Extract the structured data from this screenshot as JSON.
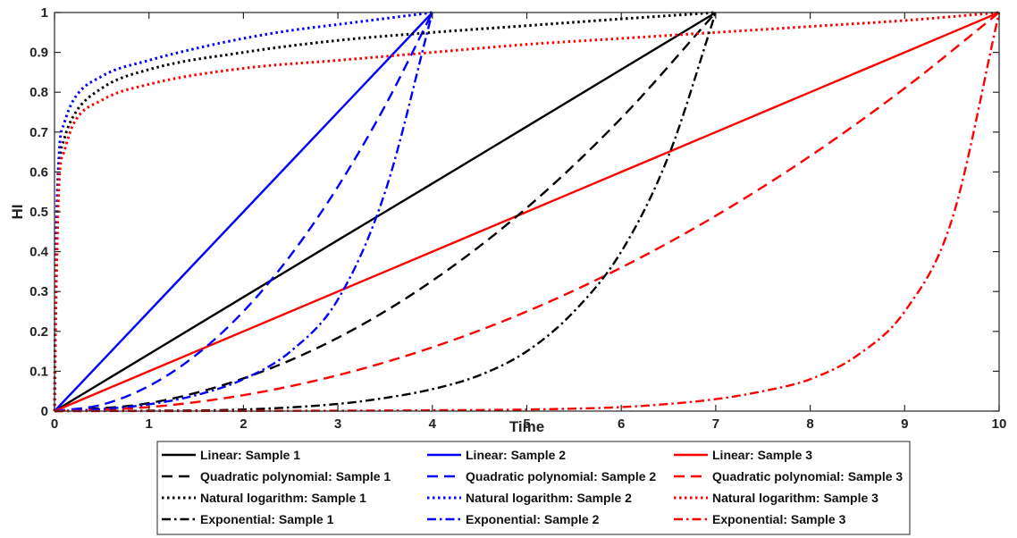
{
  "chart_data": {
    "type": "line",
    "xlabel": "Time",
    "ylabel": "HI",
    "xlim": [
      0,
      10
    ],
    "ylim": [
      0,
      1
    ],
    "xticks": [
      0,
      1,
      2,
      3,
      4,
      5,
      6,
      7,
      8,
      9,
      10
    ],
    "yticks": [
      0,
      0.1,
      0.2,
      0.3,
      0.4,
      0.5,
      0.6,
      0.7,
      0.8,
      0.9,
      1
    ],
    "grid": false,
    "legend_position": "bottom",
    "series": [
      {
        "name": "Linear: Sample 1",
        "color": "#000000",
        "style": "solid",
        "x": [
          0,
          1,
          2,
          3,
          4,
          5,
          6,
          7
        ],
        "y": [
          0,
          0.143,
          0.286,
          0.429,
          0.571,
          0.714,
          0.857,
          1
        ]
      },
      {
        "name": "Linear: Sample 2",
        "color": "#0000ff",
        "style": "solid",
        "x": [
          0,
          1,
          2,
          3,
          4
        ],
        "y": [
          0,
          0.25,
          0.5,
          0.75,
          1
        ]
      },
      {
        "name": "Linear: Sample 3",
        "color": "#ff0000",
        "style": "solid",
        "x": [
          0,
          1,
          2,
          3,
          4,
          5,
          6,
          7,
          8,
          9,
          10
        ],
        "y": [
          0,
          0.1,
          0.2,
          0.3,
          0.4,
          0.5,
          0.6,
          0.7,
          0.8,
          0.9,
          1
        ]
      },
      {
        "name": "Quadratic polynomial: Sample 1",
        "color": "#000000",
        "style": "dashed",
        "x": [
          0,
          1,
          2,
          3,
          4,
          5,
          6,
          7
        ],
        "y": [
          0,
          0.02,
          0.082,
          0.184,
          0.327,
          0.51,
          0.735,
          1
        ]
      },
      {
        "name": "Quadratic polynomial: Sample 2",
        "color": "#0000ff",
        "style": "dashed",
        "x": [
          0,
          0.5,
          1,
          1.5,
          2,
          2.5,
          3,
          3.5,
          4
        ],
        "y": [
          0,
          0.016,
          0.063,
          0.141,
          0.25,
          0.391,
          0.563,
          0.766,
          1
        ]
      },
      {
        "name": "Quadratic polynomial: Sample 3",
        "color": "#ff0000",
        "style": "dashed",
        "x": [
          0,
          1,
          2,
          3,
          4,
          5,
          6,
          7,
          8,
          9,
          10
        ],
        "y": [
          0,
          0.01,
          0.04,
          0.09,
          0.16,
          0.25,
          0.36,
          0.49,
          0.64,
          0.81,
          1
        ]
      },
      {
        "name": "Natural logarithm: Sample 1",
        "color": "#000000",
        "style": "dotted",
        "x": [
          0,
          0.01,
          0.05,
          0.1,
          0.2,
          0.5,
          1,
          2,
          3,
          4,
          5,
          6,
          7
        ],
        "y": [
          0,
          0.2,
          0.6,
          0.68,
          0.74,
          0.81,
          0.857,
          0.9,
          0.93,
          0.95,
          0.967,
          0.984,
          1
        ]
      },
      {
        "name": "Natural logarithm: Sample 2",
        "color": "#0000ff",
        "style": "dotted",
        "x": [
          0,
          0.01,
          0.05,
          0.1,
          0.2,
          0.5,
          1,
          1.5,
          2,
          2.5,
          3,
          3.5,
          4
        ],
        "y": [
          0,
          0.3,
          0.65,
          0.72,
          0.78,
          0.84,
          0.88,
          0.91,
          0.935,
          0.955,
          0.97,
          0.985,
          1
        ]
      },
      {
        "name": "Natural logarithm: Sample 3",
        "color": "#ff0000",
        "style": "dotted",
        "x": [
          0,
          0.01,
          0.05,
          0.1,
          0.2,
          0.5,
          1,
          2,
          3,
          4,
          5,
          6,
          7,
          8,
          9,
          10
        ],
        "y": [
          0,
          0.2,
          0.58,
          0.65,
          0.72,
          0.78,
          0.82,
          0.86,
          0.88,
          0.9,
          0.92,
          0.935,
          0.95,
          0.965,
          0.98,
          1
        ]
      },
      {
        "name": "Exponential: Sample 1",
        "color": "#000000",
        "style": "dashdot",
        "x": [
          0,
          1,
          2,
          3,
          3.5,
          4,
          4.5,
          5,
          5.5,
          6,
          6.5,
          7
        ],
        "y": [
          0,
          0.001,
          0.004,
          0.018,
          0.033,
          0.055,
          0.09,
          0.15,
          0.25,
          0.4,
          0.64,
          1
        ]
      },
      {
        "name": "Exponential: Sample 2",
        "color": "#0000ff",
        "style": "dashdot",
        "x": [
          0,
          0.5,
          1,
          1.5,
          2,
          2.5,
          3,
          3.5,
          4
        ],
        "y": [
          0,
          0.005,
          0.017,
          0.04,
          0.08,
          0.15,
          0.28,
          0.55,
          1
        ]
      },
      {
        "name": "Exponential: Sample 3",
        "color": "#ff0000",
        "style": "dashdot",
        "x": [
          0,
          2,
          4,
          5,
          6,
          6.5,
          7,
          7.5,
          8,
          8.5,
          9,
          9.5,
          10
        ],
        "y": [
          0,
          0.0005,
          0.002,
          0.004,
          0.01,
          0.018,
          0.03,
          0.05,
          0.08,
          0.14,
          0.25,
          0.48,
          1
        ]
      }
    ]
  }
}
